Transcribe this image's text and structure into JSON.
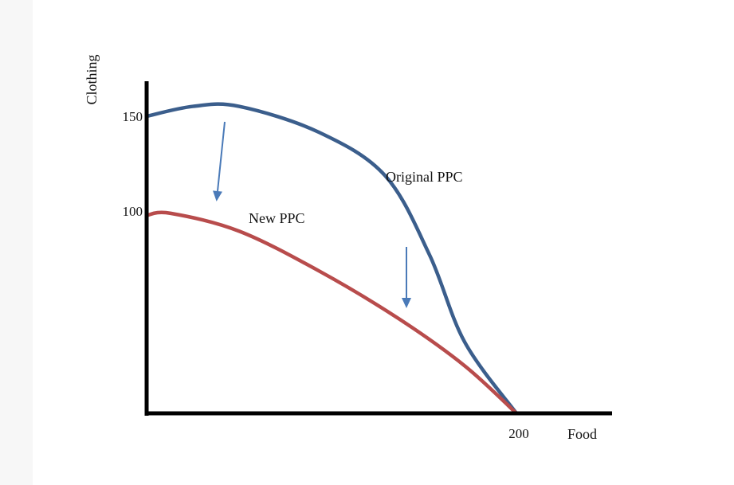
{
  "chart_data": {
    "type": "line",
    "title": "",
    "xlabel": "Food",
    "ylabel": "Clothing",
    "xlim": [
      0,
      200
    ],
    "ylim": [
      0,
      150
    ],
    "x_ticks": [
      "200"
    ],
    "y_ticks": [
      "150",
      "100"
    ],
    "grid": false,
    "series": [
      {
        "name": "Original PPC",
        "color": "#3b5e8c",
        "x": [
          0,
          25,
          50,
          93,
          129,
          153,
          172,
          200
        ],
        "y": [
          150,
          155,
          155,
          142,
          120,
          80,
          36,
          0
        ]
      },
      {
        "name": "New PPC",
        "color": "#b84c4c",
        "x": [
          0,
          13,
          50,
          93,
          136,
          172,
          200
        ],
        "y": [
          100,
          101,
          92,
          72,
          48,
          24,
          0
        ]
      }
    ],
    "annotations": [
      "Original PPC",
      "New PPC"
    ],
    "arrow_color": "#4a7ab8"
  }
}
